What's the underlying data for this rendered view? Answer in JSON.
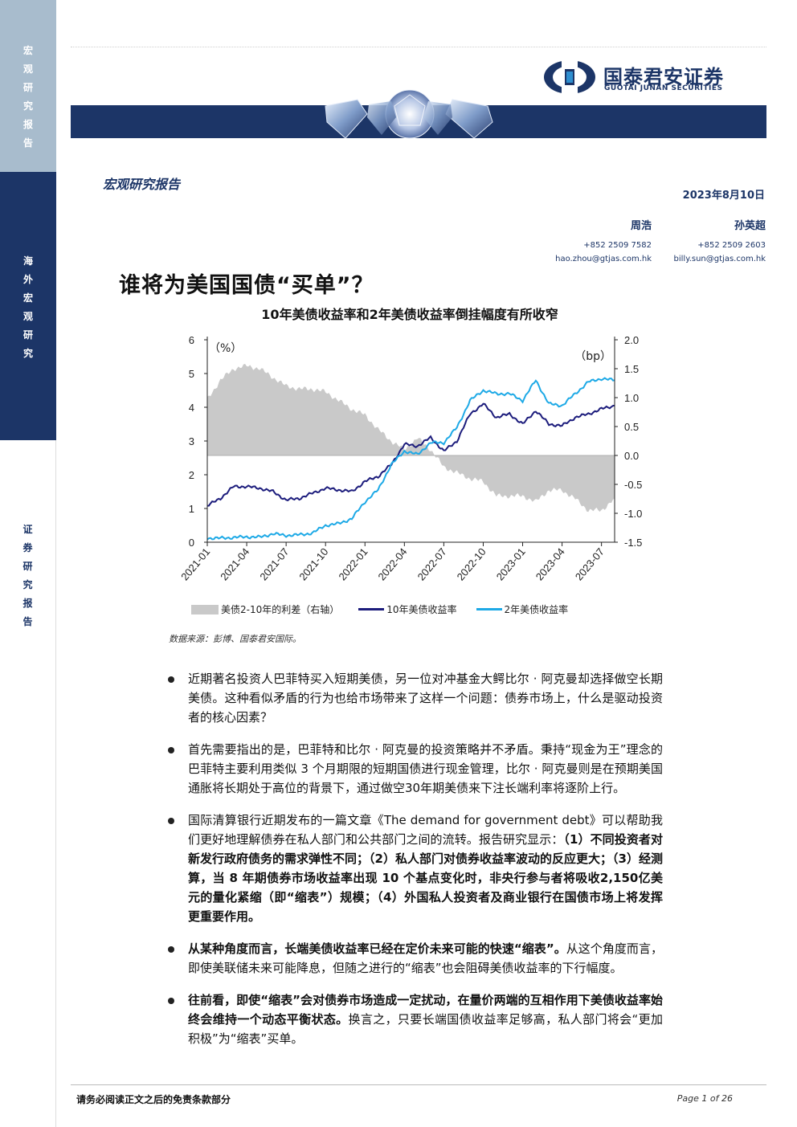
{
  "sidebar": {
    "section1": [
      "宏",
      "观",
      "研",
      "究",
      "报",
      "告"
    ],
    "section2": [
      "海",
      "外",
      "宏",
      "观",
      "研",
      "究"
    ],
    "section3": [
      "证",
      "券",
      "研",
      "究",
      "报",
      "告"
    ]
  },
  "header": {
    "logo_cn": "国泰君安证券",
    "logo_en": "GUOTAI JUNAN SECURITIES",
    "report_type": "宏观研究报告",
    "date": "2023年8月10日"
  },
  "authors": [
    {
      "name": "周浩",
      "phone": "+852 2509 7582",
      "email": "hao.zhou@gtjas.com.hk"
    },
    {
      "name": "孙英超",
      "phone": "+852 2509 2603",
      "email": "billy.sun@gtjas.com.hk"
    }
  ],
  "title": "谁将为美国国债“买单”？",
  "chart_data": {
    "type": "line",
    "title": "10年美债收益率和2年美债收益率倒挂幅度有所收窄",
    "left_axis_unit": "（%）",
    "right_axis_unit": "（bp）",
    "ylim_left": [
      0,
      6
    ],
    "ylim_right": [
      -1.5,
      2.0
    ],
    "yticks_left": [
      "0",
      "1",
      "2",
      "3",
      "4",
      "5",
      "6"
    ],
    "yticks_right": [
      "-1.5",
      "-1.0",
      "-0.5",
      "0.0",
      "0.5",
      "1.0",
      "1.5",
      "2.0"
    ],
    "x_ticks": [
      "2021-01",
      "2021-04",
      "2021-07",
      "2021-10",
      "2022-01",
      "2022-04",
      "2022-07",
      "2022-10",
      "2023-01",
      "2023-04",
      "2023-07"
    ],
    "x_months": [
      "2021-01",
      "2021-02",
      "2021-03",
      "2021-04",
      "2021-05",
      "2021-06",
      "2021-07",
      "2021-08",
      "2021-09",
      "2021-10",
      "2021-11",
      "2021-12",
      "2022-01",
      "2022-02",
      "2022-03",
      "2022-04",
      "2022-05",
      "2022-06",
      "2022-07",
      "2022-08",
      "2022-09",
      "2022-10",
      "2022-11",
      "2022-12",
      "2023-01",
      "2023-02",
      "2023-03",
      "2023-04",
      "2023-05",
      "2023-06",
      "2023-07",
      "2023-08"
    ],
    "series": [
      {
        "name": "美债2-10年的利差（右轴）",
        "axis": "right",
        "color": "#c9c9c9",
        "values": [
          0.97,
          1.3,
          1.5,
          1.55,
          1.5,
          1.35,
          1.2,
          1.15,
          1.15,
          1.1,
          0.95,
          0.8,
          0.7,
          0.45,
          0.25,
          0.1,
          0.3,
          0.1,
          -0.2,
          -0.3,
          -0.4,
          -0.45,
          -0.7,
          -0.7,
          -0.7,
          -0.8,
          -0.6,
          -0.6,
          -0.75,
          -0.95,
          -0.95,
          -0.75
        ]
      },
      {
        "name": "10年美债收益率",
        "axis": "left",
        "color": "#1c1c7c",
        "values": [
          1.08,
          1.3,
          1.65,
          1.65,
          1.6,
          1.5,
          1.25,
          1.3,
          1.45,
          1.6,
          1.55,
          1.5,
          1.8,
          1.95,
          2.3,
          2.9,
          2.85,
          3.1,
          2.7,
          3.0,
          3.8,
          4.1,
          3.7,
          3.8,
          3.5,
          3.9,
          3.5,
          3.45,
          3.7,
          3.8,
          3.95,
          4.05
        ]
      },
      {
        "name": "2年美债收益率",
        "axis": "left",
        "color": "#1da9e6",
        "values": [
          0.12,
          0.12,
          0.14,
          0.16,
          0.15,
          0.25,
          0.2,
          0.22,
          0.27,
          0.5,
          0.55,
          0.7,
          1.2,
          1.55,
          2.3,
          2.7,
          2.6,
          2.95,
          2.95,
          3.4,
          4.2,
          4.5,
          4.4,
          4.4,
          4.2,
          4.8,
          4.1,
          4.05,
          4.4,
          4.75,
          4.85,
          4.8
        ]
      }
    ]
  },
  "legend": [
    "美债2-10年的利差（右轴）",
    "10年美债收益率",
    "2年美债收益率"
  ],
  "source": "数据来源：彭博、国泰君安国际。",
  "bullets": [
    {
      "parts": [
        {
          "t": "近期著名投资人巴菲特买入短期美债，另一位对冲基金大鳄比尔 · 阿克曼却选择做空长期美债。这种看似矛盾的行为也给市场带来了这样一个问题：债券市场上，什么是驱动投资者的核心因素？",
          "b": false
        }
      ]
    },
    {
      "parts": [
        {
          "t": "首先需要指出的是，巴菲特和比尔 · 阿克曼的投资策略并不矛盾。秉持“现金为王”理念的巴菲特主要利用类似 3 个月期限的短期国债进行现金管理，比尔 · 阿克曼则是在预期美国通胀将长期处于高位的背景下，通过做空30年期美债来下注长端利率将逐阶上行。",
          "b": false
        }
      ]
    },
    {
      "parts": [
        {
          "t": "国际清算银行近期发布的一篇文章《The demand for government debt》可以帮助我们更好地理解债券在私人部门和公共部门之间的流转。报告研究显示：",
          "b": false
        },
        {
          "t": "（1）不同投资者对新发行政府债务的需求弹性不同；（2）私人部门对债券收益率波动的反应更大；（3）经测算，当 8 年期债券市场收益率出现 10 个基点变化时，非央行参与者将吸收2,150亿美元的量化紧缩（即“缩表”）规模；（4）外国私人投资者及商业银行在国债市场上将发挥更重要作用。",
          "b": true
        }
      ]
    },
    {
      "parts": [
        {
          "t": "从某种角度而言，长端美债收益率已经在定价未来可能的快速“缩表”。",
          "b": true
        },
        {
          "t": "从这个角度而言，即使美联储未来可能降息，但随之进行的“缩表”也会阻碍美债收益率的下行幅度。",
          "b": false
        }
      ]
    },
    {
      "parts": [
        {
          "t": "往前看，即使“缩表”会对债券市场造成一定扰动，在量价两端的互相作用下美债收益率始终会维持一个动态平衡状态。",
          "b": true
        },
        {
          "t": "换言之，只要长端国债收益率足够高，私人部门将会“更加积极”为“缩表”买单。",
          "b": false
        }
      ]
    }
  ],
  "footer": {
    "left": "请务必阅读正文之后的免责条款部分",
    "right": "Page 1 of 26"
  }
}
